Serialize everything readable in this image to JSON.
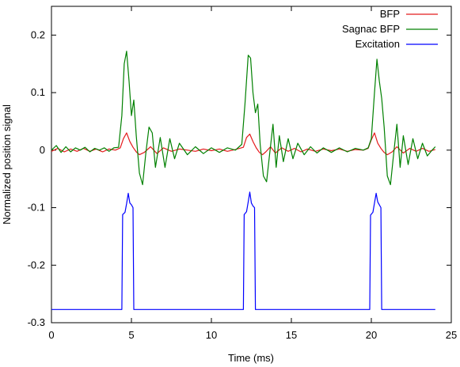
{
  "chart_data": {
    "type": "line",
    "title": "",
    "xlabel": "Time (ms)",
    "ylabel": "Normalized position signal",
    "xlim": [
      0,
      25
    ],
    "ylim": [
      -0.3,
      0.25
    ],
    "xticks": [
      0,
      5,
      10,
      15,
      20,
      25
    ],
    "xtick_labels": [
      "0",
      "5",
      "10",
      "15",
      "20",
      "25"
    ],
    "yticks": [
      -0.3,
      -0.2,
      -0.1,
      0,
      0.1,
      0.2
    ],
    "ytick_labels": [
      "-0.3",
      "-0.2",
      "-0.1",
      "0",
      "0.1",
      "0.2"
    ],
    "grid": false,
    "legend_position": "top-right",
    "series": [
      {
        "name": "BFP",
        "color": "#e41a1c",
        "x": [
          0,
          0.4,
          0.8,
          1.2,
          1.6,
          2.0,
          2.4,
          2.8,
          3.2,
          3.6,
          4.0,
          4.3,
          4.5,
          4.7,
          4.9,
          5.1,
          5.3,
          5.5,
          5.8,
          6.2,
          6.6,
          7.0,
          7.5,
          8.0,
          8.5,
          9.0,
          9.5,
          10.0,
          10.5,
          11.0,
          11.5,
          12.0,
          12.2,
          12.4,
          12.6,
          12.8,
          13.0,
          13.2,
          13.4,
          13.7,
          14.0,
          14.4,
          14.8,
          15.2,
          15.6,
          16.0,
          16.5,
          17.0,
          17.5,
          18.0,
          18.5,
          19.0,
          19.5,
          19.8,
          20.0,
          20.2,
          20.4,
          20.6,
          20.8,
          21.0,
          21.3,
          21.6,
          22.0,
          22.4,
          22.8,
          23.2,
          23.6,
          24.0
        ],
        "y": [
          -0.002,
          0.003,
          -0.003,
          0.002,
          -0.002,
          0.003,
          -0.002,
          0.002,
          -0.003,
          0.002,
          0.0,
          0.004,
          0.02,
          0.03,
          0.015,
          0.005,
          -0.003,
          -0.008,
          -0.004,
          0.006,
          -0.006,
          0.004,
          -0.002,
          0.002,
          0.0,
          -0.002,
          0.002,
          -0.001,
          0.002,
          -0.002,
          0.001,
          0.005,
          0.022,
          0.028,
          0.015,
          0.004,
          -0.004,
          -0.008,
          -0.003,
          0.006,
          -0.005,
          0.004,
          -0.002,
          0.003,
          -0.003,
          0.002,
          -0.002,
          0.002,
          -0.001,
          0.002,
          -0.002,
          0.001,
          0.0,
          0.003,
          0.018,
          0.03,
          0.012,
          0.003,
          -0.004,
          -0.008,
          -0.003,
          0.006,
          -0.005,
          0.003,
          -0.002,
          0.003,
          -0.002,
          0.001
        ]
      },
      {
        "name": "Sagnac BFP",
        "color": "#008000",
        "x": [
          0,
          0.3,
          0.6,
          0.9,
          1.2,
          1.5,
          1.8,
          2.1,
          2.4,
          2.7,
          3.0,
          3.3,
          3.6,
          3.9,
          4.2,
          4.4,
          4.55,
          4.7,
          4.85,
          5.0,
          5.15,
          5.3,
          5.5,
          5.7,
          5.9,
          6.1,
          6.3,
          6.5,
          6.8,
          7.1,
          7.4,
          7.7,
          8.0,
          8.5,
          9.0,
          9.5,
          10.0,
          10.5,
          11.0,
          11.5,
          11.9,
          12.1,
          12.3,
          12.45,
          12.6,
          12.75,
          12.9,
          13.05,
          13.25,
          13.45,
          13.65,
          13.85,
          14.05,
          14.25,
          14.5,
          14.8,
          15.1,
          15.4,
          15.8,
          16.2,
          16.6,
          17.0,
          17.5,
          18.0,
          18.5,
          19.0,
          19.5,
          19.8,
          20.0,
          20.2,
          20.35,
          20.5,
          20.65,
          20.8,
          21.0,
          21.2,
          21.4,
          21.6,
          21.8,
          22.0,
          22.3,
          22.6,
          22.9,
          23.2,
          23.5,
          23.8,
          24.0
        ],
        "y": [
          0.0,
          0.008,
          -0.004,
          0.006,
          -0.003,
          0.004,
          0.0,
          0.005,
          -0.003,
          0.003,
          0.0,
          0.004,
          -0.002,
          0.004,
          0.005,
          0.06,
          0.15,
          0.172,
          0.12,
          0.06,
          0.087,
          0.025,
          -0.04,
          -0.06,
          -0.005,
          0.04,
          0.03,
          -0.03,
          0.022,
          -0.03,
          0.02,
          -0.015,
          0.012,
          -0.008,
          0.006,
          -0.006,
          0.004,
          -0.004,
          0.004,
          0.0,
          0.01,
          0.08,
          0.165,
          0.16,
          0.1,
          0.065,
          0.08,
          0.01,
          -0.045,
          -0.055,
          -0.005,
          0.045,
          -0.03,
          0.025,
          -0.02,
          0.02,
          -0.015,
          0.012,
          -0.008,
          0.006,
          -0.005,
          0.004,
          -0.004,
          0.004,
          -0.003,
          0.003,
          0.0,
          0.004,
          0.02,
          0.1,
          0.158,
          0.12,
          0.09,
          0.04,
          -0.045,
          -0.06,
          -0.005,
          0.045,
          -0.03,
          0.025,
          -0.025,
          0.02,
          -0.015,
          0.012,
          -0.01,
          0.0,
          0.006
        ]
      },
      {
        "name": "Excitation",
        "color": "#0000ff",
        "x": [
          0,
          4.0,
          4.4,
          4.45,
          4.6,
          4.7,
          4.8,
          4.9,
          5.0,
          5.1,
          5.15,
          5.2,
          11.9,
          12.0,
          12.05,
          12.2,
          12.3,
          12.4,
          12.5,
          12.6,
          12.7,
          12.75,
          12.8,
          19.8,
          19.9,
          19.95,
          20.1,
          20.2,
          20.3,
          20.4,
          20.5,
          20.6,
          20.65,
          20.7,
          24.0
        ],
        "y": [
          -0.277,
          -0.277,
          -0.277,
          -0.112,
          -0.108,
          -0.093,
          -0.075,
          -0.092,
          -0.095,
          -0.1,
          -0.277,
          -0.277,
          -0.277,
          -0.277,
          -0.112,
          -0.107,
          -0.09,
          -0.073,
          -0.092,
          -0.097,
          -0.1,
          -0.277,
          -0.277,
          -0.277,
          -0.277,
          -0.113,
          -0.108,
          -0.092,
          -0.075,
          -0.09,
          -0.095,
          -0.1,
          -0.277,
          -0.277,
          -0.277
        ]
      }
    ]
  }
}
